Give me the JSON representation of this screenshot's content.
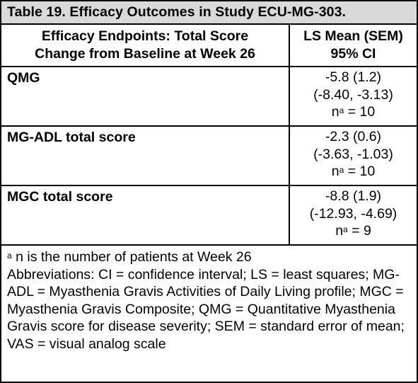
{
  "table": {
    "caption": "Table 19. Efficacy Outcomes in Study ECU-MG-303.",
    "header": {
      "col1_line1": "Efficacy Endpoints: Total Score",
      "col1_line2": "Change from Baseline at Week 26",
      "col2_line1": "LS Mean (SEM)",
      "col2_line2": "95% CI"
    },
    "rows": [
      {
        "endpoint": "QMG",
        "mean_sem": "-5.8 (1.2)",
        "ci": "(-8.40, -3.13)",
        "n_prefix": "n",
        "n_sup": "a",
        "n_suffix": " = 10"
      },
      {
        "endpoint": "MG-ADL total score",
        "mean_sem": "-2.3 (0.6)",
        "ci": "(-3.63, -1.03)",
        "n_prefix": "n",
        "n_sup": "a",
        "n_suffix": " = 10"
      },
      {
        "endpoint": "MGC total score",
        "mean_sem": "-8.8 (1.9)",
        "ci": "(-12.93, -4.69)",
        "n_prefix": "n",
        "n_sup": "a",
        "n_suffix": " = 9"
      }
    ],
    "footnote": {
      "marker": "a",
      "note": " n is the number of patients at Week 26",
      "abbreviations": "Abbreviations: CI = confidence interval; LS = least squares; MG-ADL = Myasthenia Gravis Activities of Daily Living profile; MGC = Myasthenia Gravis Composite; QMG = Quantitative Myasthenia Gravis score for disease severity; SEM = standard error of mean; VAS = visual analog scale"
    }
  }
}
